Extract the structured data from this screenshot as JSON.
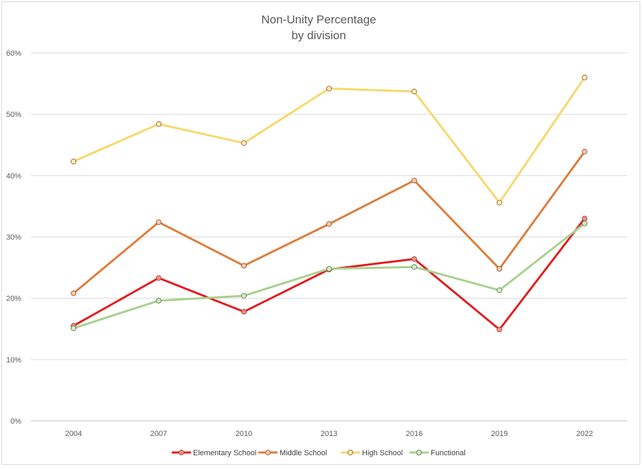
{
  "chart_data": {
    "type": "line",
    "title_line1": "Non-Unity Percentage",
    "title_line2": "by division",
    "xlabel": "",
    "ylabel": "",
    "categories": [
      "2004",
      "2007",
      "2010",
      "2013",
      "2016",
      "2019",
      "2022"
    ],
    "ylim": [
      0,
      60
    ],
    "y_ticks": [
      "0%",
      "10%",
      "20%",
      "30%",
      "40%",
      "50%",
      "60%"
    ],
    "y_tick_values": [
      0,
      10,
      20,
      30,
      40,
      50,
      60
    ],
    "grid": true,
    "legend_position": "bottom",
    "series": [
      {
        "name": "Elementary School",
        "values": [
          15.5,
          23.3,
          17.8,
          24.7,
          26.4,
          14.9,
          33.0
        ],
        "color": "#e31a1c",
        "marker_fill": "#f28b8b"
      },
      {
        "name": "Middle School",
        "values": [
          20.8,
          32.4,
          25.3,
          32.1,
          39.2,
          24.8,
          43.9
        ],
        "color": "#e07b39",
        "marker_fill": "#f5c7a5"
      },
      {
        "name": "High School",
        "values": [
          42.3,
          48.4,
          45.3,
          54.2,
          53.7,
          35.6,
          56.0
        ],
        "color": "#f7d86a",
        "marker_fill": "#fbeeb0"
      },
      {
        "name": "Functional",
        "values": [
          15.1,
          19.6,
          20.4,
          24.8,
          25.1,
          21.3,
          32.2
        ],
        "color": "#a8d08d",
        "marker_fill": "#d4eac5"
      }
    ]
  }
}
